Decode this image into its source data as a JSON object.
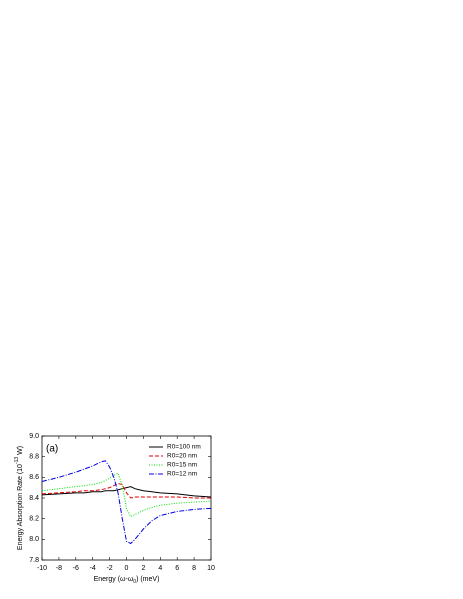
{
  "chart_data": {
    "type": "line",
    "annotation": "(a)",
    "xlabel": [
      "Energy (ω-ω",
      "0",
      ") (meV)"
    ],
    "ylabel": [
      "Energy Absorption Rate (10",
      "-13",
      " W)"
    ],
    "x": [
      -10,
      -8,
      -6,
      -5,
      -4,
      -3,
      -2.5,
      -2,
      -1.5,
      -1,
      -0.5,
      0,
      0.5,
      1,
      1.5,
      2,
      3,
      4,
      6,
      8,
      10
    ],
    "series": [
      {
        "name": "R0=100 nm",
        "color": "#000000",
        "linestyle": "solid",
        "values": [
          8.43,
          8.44,
          8.45,
          8.45,
          8.46,
          8.46,
          8.47,
          8.47,
          8.47,
          8.48,
          8.49,
          8.5,
          8.51,
          8.49,
          8.48,
          8.47,
          8.46,
          8.45,
          8.44,
          8.42,
          8.41
        ]
      },
      {
        "name": "R0=20 nm",
        "color": "#e00000",
        "linestyle": "dashed",
        "values": [
          8.44,
          8.45,
          8.46,
          8.47,
          8.47,
          8.48,
          8.49,
          8.5,
          8.52,
          8.54,
          8.53,
          8.45,
          8.4,
          8.41,
          8.41,
          8.41,
          8.41,
          8.41,
          8.41,
          8.4,
          8.4
        ]
      },
      {
        "name": "R0=15 nm",
        "color": "#00e000",
        "linestyle": "dotted",
        "values": [
          8.47,
          8.49,
          8.51,
          8.52,
          8.53,
          8.55,
          8.57,
          8.59,
          8.62,
          8.64,
          8.52,
          8.3,
          8.22,
          8.24,
          8.26,
          8.28,
          8.31,
          8.33,
          8.35,
          8.36,
          8.37
        ]
      },
      {
        "name": "R0=12 nm",
        "color": "#0000e0",
        "linestyle": "dashdot",
        "values": [
          8.56,
          8.6,
          8.65,
          8.68,
          8.71,
          8.75,
          8.76,
          8.7,
          8.6,
          8.45,
          8.2,
          7.98,
          7.96,
          8.0,
          8.05,
          8.1,
          8.18,
          8.23,
          8.27,
          8.29,
          8.3
        ]
      }
    ],
    "xlim": [
      -10,
      10
    ],
    "xticks": [
      -10,
      -8,
      -6,
      -4,
      -2,
      0,
      2,
      4,
      6,
      8,
      10
    ],
    "ylim": [
      7.8,
      9.0
    ],
    "yticks": [
      7.8,
      {
        "value": 8,
        "label": "8.0"
      },
      8.2,
      8.4,
      8.6,
      8.8,
      {
        "value": 9,
        "label": "9.0"
      }
    ],
    "legend": "upper right"
  }
}
